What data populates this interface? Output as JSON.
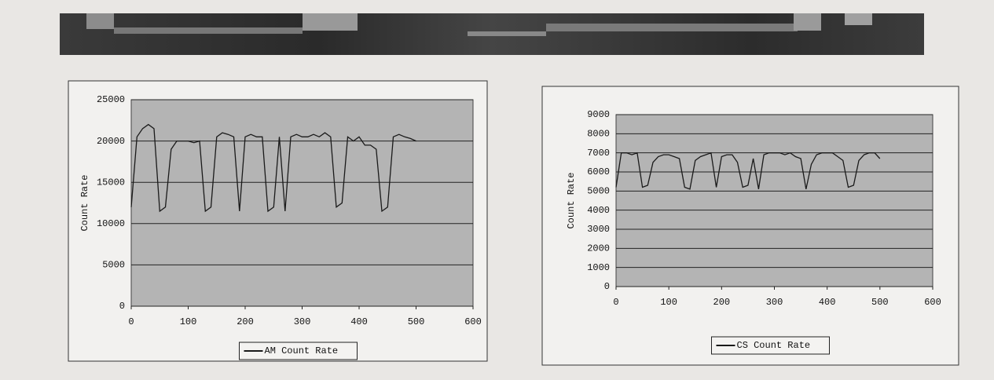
{
  "chart_data": [
    {
      "type": "line",
      "ylabel": "Count Rate",
      "x": [
        0,
        10,
        20,
        30,
        40,
        50,
        60,
        70,
        80,
        90,
        100,
        110,
        120,
        130,
        140,
        150,
        160,
        170,
        180,
        190,
        200,
        210,
        220,
        230,
        240,
        250,
        260,
        270,
        280,
        290,
        300,
        310,
        320,
        330,
        340,
        350,
        360,
        370,
        380,
        390,
        400,
        410,
        420,
        430,
        440,
        450,
        460,
        470,
        480,
        490,
        500
      ],
      "series": [
        {
          "name": "AM Count Rate",
          "color": "#1a1a1a",
          "values": [
            12000,
            20500,
            21500,
            22000,
            21500,
            11500,
            12000,
            19000,
            20000,
            20000,
            20000,
            19800,
            20000,
            11500,
            12000,
            20500,
            21000,
            20800,
            20500,
            11500,
            20500,
            20800,
            20500,
            20500,
            11500,
            12000,
            20500,
            11500,
            20500,
            20800,
            20500,
            20500,
            20800,
            20500,
            21000,
            20500,
            12000,
            12500,
            20500,
            20000,
            20500,
            19500,
            19500,
            19000,
            11500,
            12000,
            20500,
            20800,
            20500,
            20300,
            20000
          ]
        }
      ],
      "xlim": [
        0,
        600
      ],
      "xticks": [
        0,
        100,
        200,
        300,
        400,
        500,
        600
      ],
      "ylim": [
        0,
        25000
      ],
      "yticks": [
        0,
        5000,
        10000,
        15000,
        20000,
        25000
      ],
      "grid": true,
      "legend": "bottom",
      "plot_background": "#b4b4b4"
    },
    {
      "type": "line",
      "ylabel": "Count Rate",
      "x": [
        0,
        10,
        20,
        30,
        40,
        50,
        60,
        70,
        80,
        90,
        100,
        110,
        120,
        130,
        140,
        150,
        160,
        170,
        180,
        190,
        200,
        210,
        220,
        230,
        240,
        250,
        260,
        270,
        280,
        290,
        300,
        310,
        320,
        330,
        340,
        350,
        360,
        370,
        380,
        390,
        400,
        410,
        420,
        430,
        440,
        450,
        460,
        470,
        480,
        490,
        500
      ],
      "series": [
        {
          "name": "CS Count Rate",
          "color": "#1a1a1a",
          "values": [
            5200,
            7000,
            7000,
            6900,
            7000,
            5200,
            5300,
            6500,
            6800,
            6900,
            6900,
            6800,
            6700,
            5200,
            5100,
            6600,
            6800,
            6900,
            7000,
            5200,
            6800,
            6900,
            6900,
            6500,
            5200,
            5300,
            6700,
            5100,
            6900,
            7000,
            7000,
            7000,
            6900,
            7000,
            6800,
            6700,
            5100,
            6400,
            6900,
            7000,
            7000,
            7000,
            6800,
            6600,
            5200,
            5300,
            6600,
            6900,
            7000,
            7000,
            6700
          ]
        }
      ],
      "xlim": [
        0,
        600
      ],
      "xticks": [
        0,
        100,
        200,
        300,
        400,
        500,
        600
      ],
      "ylim": [
        0,
        9000
      ],
      "yticks": [
        0,
        1000,
        2000,
        3000,
        4000,
        5000,
        6000,
        7000,
        8000,
        9000
      ],
      "grid": true,
      "legend": "bottom",
      "plot_background": "#b4b4b4"
    }
  ]
}
